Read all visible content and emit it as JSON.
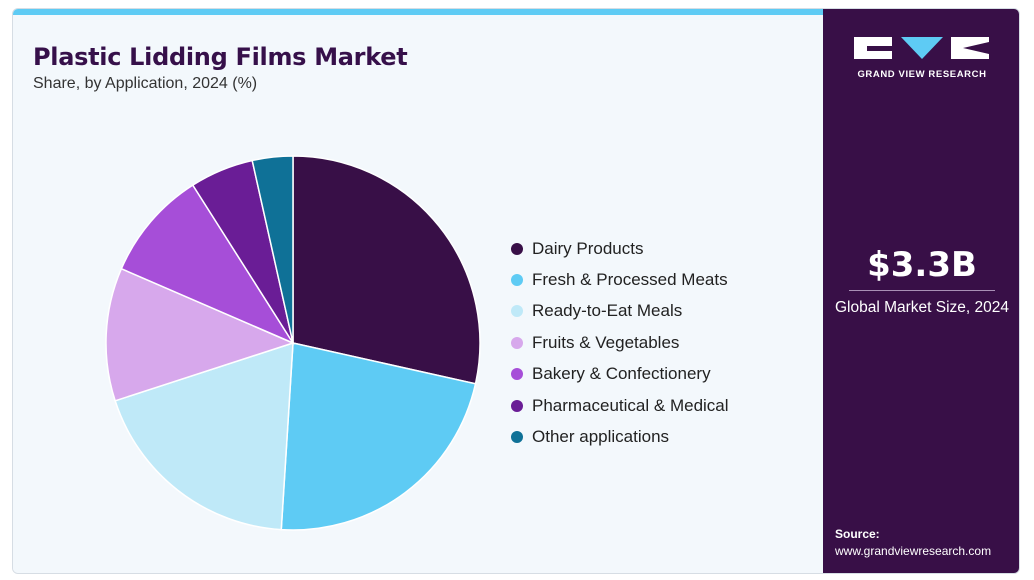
{
  "header": {
    "title": "Plastic Lidding Films Market",
    "subtitle": "Share, by Application, 2024 (%)"
  },
  "chart_data": {
    "type": "pie",
    "title": "Plastic Lidding Films Market",
    "subtitle": "Share, by Application, 2024 (%)",
    "legend_position": "right",
    "slices": [
      {
        "label": "Dairy Products",
        "value": 28.5,
        "color": "#380f47"
      },
      {
        "label": "Fresh & Processed Meats",
        "value": 22.5,
        "color": "#5ecbf4"
      },
      {
        "label": "Ready-to-Eat Meals",
        "value": 19.0,
        "color": "#bfe9f8"
      },
      {
        "label": "Fruits & Vegetables",
        "value": 11.5,
        "color": "#d7a8ec"
      },
      {
        "label": "Bakery & Confectionery",
        "value": 9.5,
        "color": "#a64ed8"
      },
      {
        "label": "Pharmaceutical & Medical",
        "value": 5.5,
        "color": "#6a1d96"
      },
      {
        "label": "Other applications",
        "value": 3.5,
        "color": "#0f7197"
      }
    ]
  },
  "side_panel": {
    "logo_text": "GRAND VIEW RESEARCH",
    "market_size": "$3.3B",
    "market_size_label": "Global Market Size, 2024",
    "source_label": "Source:",
    "source_url": "www.grandviewresearch.com"
  }
}
